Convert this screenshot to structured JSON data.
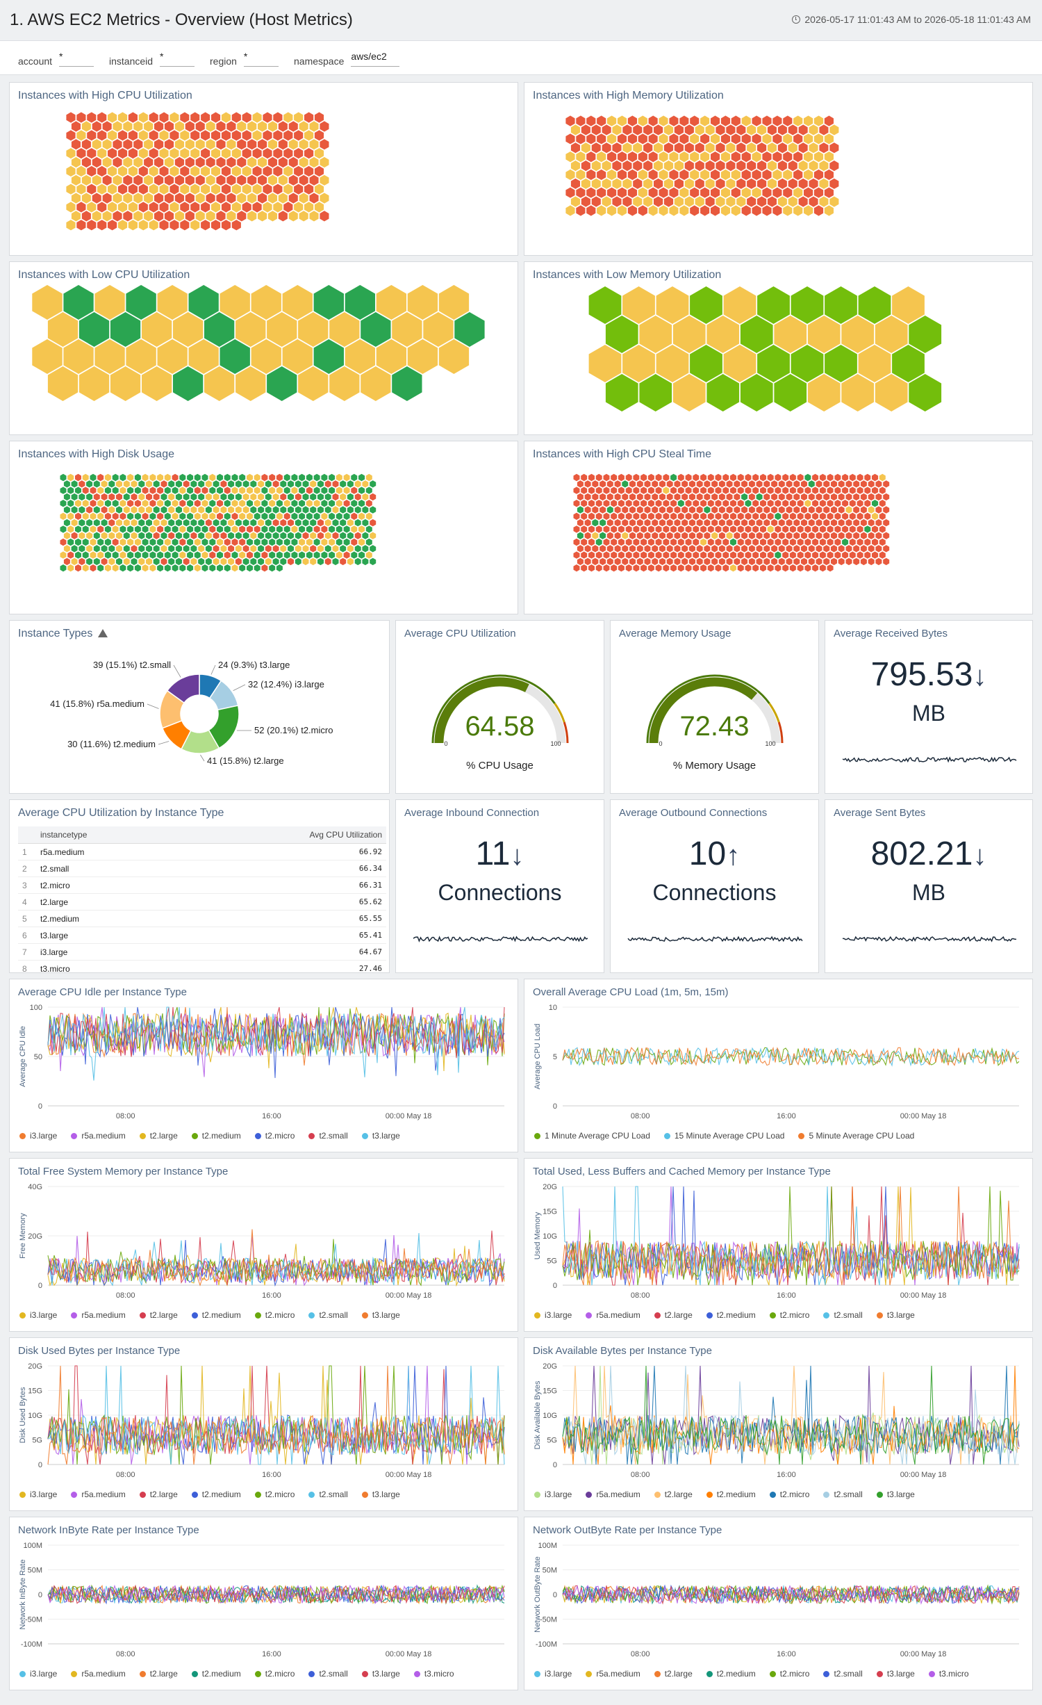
{
  "header": {
    "title": "1. AWS EC2 Metrics - Overview (Host Metrics)",
    "time_range": "2026-05-17 11:01:43 AM to 2026-05-18 11:01:43 AM"
  },
  "filters": [
    {
      "label": "account",
      "value": "*"
    },
    {
      "label": "instanceid",
      "value": "*"
    },
    {
      "label": "region",
      "value": "*"
    },
    {
      "label": "namespace",
      "value": "aws/ec2"
    }
  ],
  "colors": {
    "red": "#e8593d",
    "yellow": "#f5c54f",
    "green": "#2aa551",
    "lime": "#73be0c"
  },
  "honeycombs": {
    "high_cpu": {
      "title": "Instances with High CPU Utilization"
    },
    "high_mem": {
      "title": "Instances with High Memory Utilization"
    },
    "low_cpu": {
      "title": "Instances with Low CPU Utilization"
    },
    "low_mem": {
      "title": "Instances with Low Memory Utilization"
    },
    "high_disk": {
      "title": "Instances with High Disk Usage"
    },
    "high_steal": {
      "title": "Instances with High CPU Steal Time"
    }
  },
  "instance_types_panel": {
    "title": "Instance Types",
    "chart_data": {
      "type": "pie",
      "slices": [
        {
          "name": "t3.large",
          "value": 24,
          "label": "24 (9.3%) t3.large",
          "color": "#1f78b4"
        },
        {
          "name": "i3.large",
          "value": 32,
          "label": "32 (12.4%) i3.large",
          "color": "#a6cee3"
        },
        {
          "name": "t2.micro",
          "value": 52,
          "label": "52 (20.1%) t2.micro",
          "color": "#33a02c"
        },
        {
          "name": "t2.large",
          "value": 41,
          "label": "41 (15.8%) t2.large",
          "color": "#b2df8a"
        },
        {
          "name": "t2.medium",
          "value": 30,
          "label": "30 (11.6%) t2.medium",
          "color": "#ff7f00"
        },
        {
          "name": "r5a.medium",
          "value": 41,
          "label": "41 (15.8%) r5a.medium",
          "color": "#fdbf6f"
        },
        {
          "name": "t2.small",
          "value": 39,
          "label": "39 (15.1%) t2.small",
          "color": "#6a3d9a"
        }
      ]
    }
  },
  "gauges": {
    "cpu": {
      "title": "Average CPU Utilization",
      "value": 64.58,
      "value_text": "64.58",
      "unit_label": "% CPU Usage",
      "min": "0",
      "max": "100"
    },
    "mem": {
      "title": "Average Memory Usage",
      "value": 72.43,
      "value_text": "72.43",
      "unit_label": "% Memory Usage",
      "min": "0",
      "max": "100"
    }
  },
  "singles": {
    "recv": {
      "title": "Average Received Bytes",
      "value": "795.53",
      "arrow": "↓",
      "unit": "MB"
    },
    "inbound": {
      "title": "Average Inbound Connection",
      "value": "11",
      "arrow": "↓",
      "unit": "Connections"
    },
    "outbound": {
      "title": "Average Outbound Connections",
      "value": "10",
      "arrow": "↑",
      "unit": "Connections"
    },
    "sent": {
      "title": "Average Sent Bytes",
      "value": "802.21",
      "arrow": "↓",
      "unit": "MB"
    }
  },
  "cpu_table": {
    "title": "Average CPU Utilization by Instance Type",
    "columns": [
      "instancetype",
      "Avg CPU Utilization"
    ],
    "rows": [
      {
        "n": "1",
        "type": "r5a.medium",
        "value": "66.92"
      },
      {
        "n": "2",
        "type": "t2.small",
        "value": "66.34"
      },
      {
        "n": "3",
        "type": "t2.micro",
        "value": "66.31"
      },
      {
        "n": "4",
        "type": "t2.large",
        "value": "65.62"
      },
      {
        "n": "5",
        "type": "t2.medium",
        "value": "65.55"
      },
      {
        "n": "6",
        "type": "t3.large",
        "value": "65.41"
      },
      {
        "n": "7",
        "type": "i3.large",
        "value": "64.67"
      },
      {
        "n": "8",
        "type": "t3.micro",
        "value": "27.46"
      }
    ]
  },
  "timeseries": [
    {
      "id": "ts1",
      "title": "Average CPU Idle per Instance Type",
      "ylabel": "Average CPU Idle",
      "yticks": [
        "100",
        "50",
        "0"
      ],
      "xticks": [
        "08:00",
        "16:00",
        "00:00 May 18"
      ],
      "chart_data": {
        "type": "line",
        "ylim": [
          0,
          100
        ],
        "base": 72,
        "amp": 22,
        "spikes": 40
      },
      "series": [
        {
          "name": "i3.large",
          "color": "#f07c2f"
        },
        {
          "name": "r5a.medium",
          "color": "#b45ee8"
        },
        {
          "name": "t2.large",
          "color": "#e2b720"
        },
        {
          "name": "t2.medium",
          "color": "#6aa80d"
        },
        {
          "name": "t2.micro",
          "color": "#3d5fd8"
        },
        {
          "name": "t2.small",
          "color": "#d53e4f"
        },
        {
          "name": "t3.large",
          "color": "#56c0e6"
        }
      ]
    },
    {
      "id": "ts2",
      "title": "Overall Average CPU Load (1m, 5m, 15m)",
      "ylabel": "Average CPU Load",
      "yticks": [
        "10",
        "5",
        "0"
      ],
      "xticks": [
        "08:00",
        "16:00",
        "00:00 May 18"
      ],
      "chart_data": {
        "type": "line",
        "ylim": [
          0,
          10
        ],
        "base": 5,
        "amp": 0.9,
        "spikes": 0
      },
      "series": [
        {
          "name": "1 Minute Average CPU Load",
          "color": "#6aa80d"
        },
        {
          "name": "15 Minute Average CPU Load",
          "color": "#56c0e6"
        },
        {
          "name": "5 Minute Average CPU Load",
          "color": "#f07c2f"
        }
      ]
    },
    {
      "id": "ts3",
      "title": "Total Free System Memory per Instance Type",
      "ylabel": "Free Memory",
      "yticks": [
        "40G",
        "20G",
        "0"
      ],
      "xticks": [
        "08:00",
        "16:00",
        "00:00 May 18"
      ],
      "chart_data": {
        "type": "line",
        "ylim": [
          0,
          40
        ],
        "base": 6,
        "amp": 5,
        "spikes": 14
      },
      "series": [
        {
          "name": "i3.large",
          "color": "#e2b720"
        },
        {
          "name": "r5a.medium",
          "color": "#b45ee8"
        },
        {
          "name": "t2.large",
          "color": "#d53e4f"
        },
        {
          "name": "t2.medium",
          "color": "#3d5fd8"
        },
        {
          "name": "t2.micro",
          "color": "#6aa80d"
        },
        {
          "name": "t2.small",
          "color": "#56c0e6"
        },
        {
          "name": "t3.large",
          "color": "#f07c2f"
        }
      ]
    },
    {
      "id": "ts4",
      "title": "Total Used, Less Buffers and Cached Memory per Instance Type",
      "ylabel": "Used Memory",
      "yticks": [
        "20G",
        "15G",
        "10G",
        "5G",
        "0"
      ],
      "xticks": [
        "08:00",
        "16:00",
        "00:00 May 18"
      ],
      "chart_data": {
        "type": "line",
        "ylim": [
          0,
          20
        ],
        "base": 5,
        "amp": 4,
        "spikes": 30
      },
      "series": [
        {
          "name": "i3.large",
          "color": "#e2b720"
        },
        {
          "name": "r5a.medium",
          "color": "#b45ee8"
        },
        {
          "name": "t2.large",
          "color": "#d53e4f"
        },
        {
          "name": "t2.medium",
          "color": "#3d5fd8"
        },
        {
          "name": "t2.micro",
          "color": "#6aa80d"
        },
        {
          "name": "t2.small",
          "color": "#56c0e6"
        },
        {
          "name": "t3.large",
          "color": "#f07c2f"
        }
      ]
    },
    {
      "id": "ts5",
      "title": "Disk Used Bytes per Instance Type",
      "ylabel": "Disk Used Bytes",
      "yticks": [
        "20G",
        "15G",
        "10G",
        "5G",
        "0"
      ],
      "xticks": [
        "08:00",
        "16:00",
        "00:00 May 18"
      ],
      "chart_data": {
        "type": "line",
        "ylim": [
          0,
          20
        ],
        "base": 6,
        "amp": 4,
        "spikes": 30
      },
      "series": [
        {
          "name": "i3.large",
          "color": "#e2b720"
        },
        {
          "name": "r5a.medium",
          "color": "#b45ee8"
        },
        {
          "name": "t2.large",
          "color": "#d53e4f"
        },
        {
          "name": "t2.medium",
          "color": "#3d5fd8"
        },
        {
          "name": "t2.micro",
          "color": "#6aa80d"
        },
        {
          "name": "t2.small",
          "color": "#56c0e6"
        },
        {
          "name": "t3.large",
          "color": "#f07c2f"
        }
      ]
    },
    {
      "id": "ts6",
      "title": "Disk Available Bytes per Instance Type",
      "ylabel": "Disk Available Bytes",
      "yticks": [
        "20G",
        "15G",
        "10G",
        "5G",
        "0"
      ],
      "xticks": [
        "08:00",
        "16:00",
        "00:00 May 18"
      ],
      "chart_data": {
        "type": "line",
        "ylim": [
          0,
          20
        ],
        "base": 6,
        "amp": 4,
        "spikes": 30
      },
      "series": [
        {
          "name": "i3.large",
          "color": "#b2df8a"
        },
        {
          "name": "r5a.medium",
          "color": "#6a3d9a"
        },
        {
          "name": "t2.large",
          "color": "#fdbf6f"
        },
        {
          "name": "t2.medium",
          "color": "#ff7f00"
        },
        {
          "name": "t2.micro",
          "color": "#1f78b4"
        },
        {
          "name": "t2.small",
          "color": "#a6cee3"
        },
        {
          "name": "t3.large",
          "color": "#33a02c"
        }
      ]
    },
    {
      "id": "ts7",
      "title": "Network InByte Rate per Instance Type",
      "ylabel": "Network InByte Rate",
      "yticks": [
        "100M",
        "50M",
        "0",
        "-50M",
        "-100M"
      ],
      "xticks": [
        "08:00",
        "16:00",
        "00:00 May 18"
      ],
      "chart_data": {
        "type": "line",
        "ylim": [
          -100,
          100
        ],
        "base": 0,
        "amp": 18,
        "spikes": 10
      },
      "series": [
        {
          "name": "i3.large",
          "color": "#56c0e6"
        },
        {
          "name": "r5a.medium",
          "color": "#e2b720"
        },
        {
          "name": "t2.large",
          "color": "#f07c2f"
        },
        {
          "name": "t2.medium",
          "color": "#14967a"
        },
        {
          "name": "t2.micro",
          "color": "#6aa80d"
        },
        {
          "name": "t2.small",
          "color": "#3d5fd8"
        },
        {
          "name": "t3.large",
          "color": "#d53e4f"
        },
        {
          "name": "t3.micro",
          "color": "#b45ee8"
        }
      ]
    },
    {
      "id": "ts8",
      "title": "Network OutByte Rate per Instance Type",
      "ylabel": "Network OutByte Rate",
      "yticks": [
        "100M",
        "50M",
        "0",
        "-50M",
        "-100M"
      ],
      "xticks": [
        "08:00",
        "16:00",
        "00:00 May 18"
      ],
      "chart_data": {
        "type": "line",
        "ylim": [
          -100,
          100
        ],
        "base": 0,
        "amp": 18,
        "spikes": 10
      },
      "series": [
        {
          "name": "i3.large",
          "color": "#56c0e6"
        },
        {
          "name": "r5a.medium",
          "color": "#e2b720"
        },
        {
          "name": "t2.large",
          "color": "#f07c2f"
        },
        {
          "name": "t2.medium",
          "color": "#14967a"
        },
        {
          "name": "t2.micro",
          "color": "#6aa80d"
        },
        {
          "name": "t2.small",
          "color": "#3d5fd8"
        },
        {
          "name": "t3.large",
          "color": "#d53e4f"
        },
        {
          "name": "t3.micro",
          "color": "#b45ee8"
        }
      ]
    }
  ]
}
